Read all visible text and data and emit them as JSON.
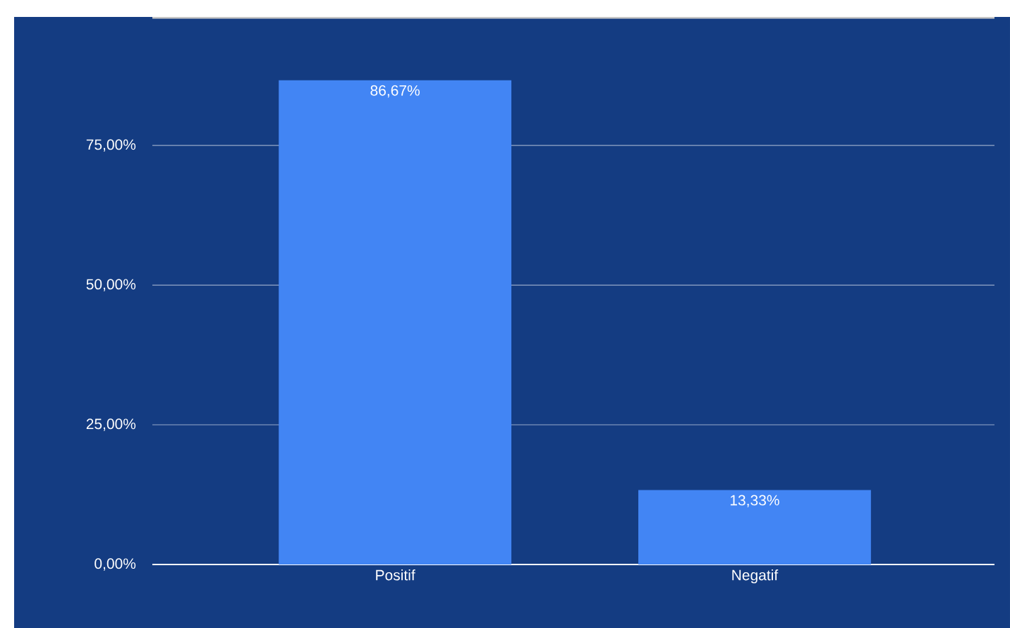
{
  "chart_data": {
    "type": "bar",
    "categories": [
      "Positif",
      "Negatif"
    ],
    "values": [
      86.67,
      13.33
    ],
    "value_labels": [
      "86,67%",
      "13,33%"
    ],
    "color": "#4285f4",
    "ylim": [
      0,
      98
    ],
    "yticks": [
      {
        "value": 0,
        "label": "0,00%"
      },
      {
        "value": 25,
        "label": "25,00%"
      },
      {
        "value": 50,
        "label": "50,00%"
      },
      {
        "value": 75,
        "label": "75,00%"
      }
    ],
    "grid": "y"
  }
}
